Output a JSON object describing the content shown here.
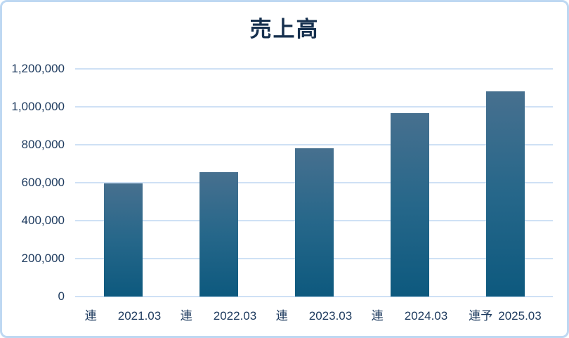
{
  "window": {
    "title": "売上高"
  },
  "colors": {
    "background": "#ffffff",
    "card_border": "#bed8f2",
    "gridline": "#cfe1f5",
    "bar_gradient_top": "#47708f",
    "bar_gradient_mid": "#26678a",
    "bar_gradient_bottom": "#0d597e",
    "title_text": "#16304e",
    "axis_text": "#1d3a5e"
  },
  "chart_data": {
    "type": "bar",
    "title": "売上高",
    "xlabel": "",
    "ylabel": "",
    "legend": "none",
    "grid": "horizontal",
    "ylim": [
      0,
      1200000
    ],
    "ytick_interval": 200000,
    "ytick_labels": [
      "1,200,000",
      "1,000,000",
      "800,000",
      "600,000",
      "400,000",
      "200,000",
      "0"
    ],
    "categories": [
      "連 2021.03",
      "連 2022.03",
      "連 2023.03",
      "連 2024.03",
      "連予 2025.03"
    ],
    "category_parts": [
      {
        "prefix": "連",
        "date": "2021.03"
      },
      {
        "prefix": "連",
        "date": "2022.03"
      },
      {
        "prefix": "連",
        "date": "2023.03"
      },
      {
        "prefix": "連",
        "date": "2024.03"
      },
      {
        "prefix": "連予",
        "date": "2025.03"
      }
    ],
    "values": [
      595000,
      655000,
      780000,
      965000,
      1080000
    ]
  }
}
